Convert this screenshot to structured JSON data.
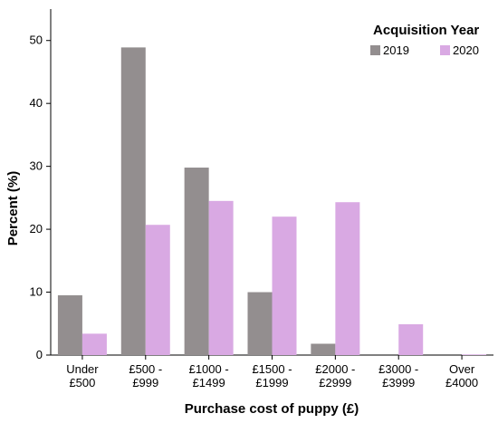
{
  "chart_data": {
    "type": "bar",
    "categories": [
      [
        "Under",
        "£500"
      ],
      [
        "£500 -",
        "£999"
      ],
      [
        "£1000 -",
        "£1499"
      ],
      [
        "£1500 -",
        "£1999"
      ],
      [
        "£2000 -",
        "£2999"
      ],
      [
        "£3000 -",
        "£3999"
      ],
      [
        "Over",
        "£4000"
      ]
    ],
    "series": [
      {
        "name": "2019",
        "values": [
          9.5,
          48.9,
          29.8,
          10.0,
          1.8,
          0.0,
          0.0
        ],
        "color": "#938e8f"
      },
      {
        "name": "2020",
        "values": [
          3.4,
          20.7,
          24.5,
          22.0,
          24.3,
          4.9,
          0.1
        ],
        "color": "#d9a9e3"
      }
    ],
    "xlabel": "Purchase cost of puppy (£)",
    "ylabel": "Percent (%)",
    "ylim": [
      0,
      55
    ],
    "yticks": [
      0,
      10,
      20,
      30,
      40,
      50
    ],
    "grid": false,
    "legend": {
      "title": "Acquisition Year",
      "position": "top-right"
    }
  }
}
